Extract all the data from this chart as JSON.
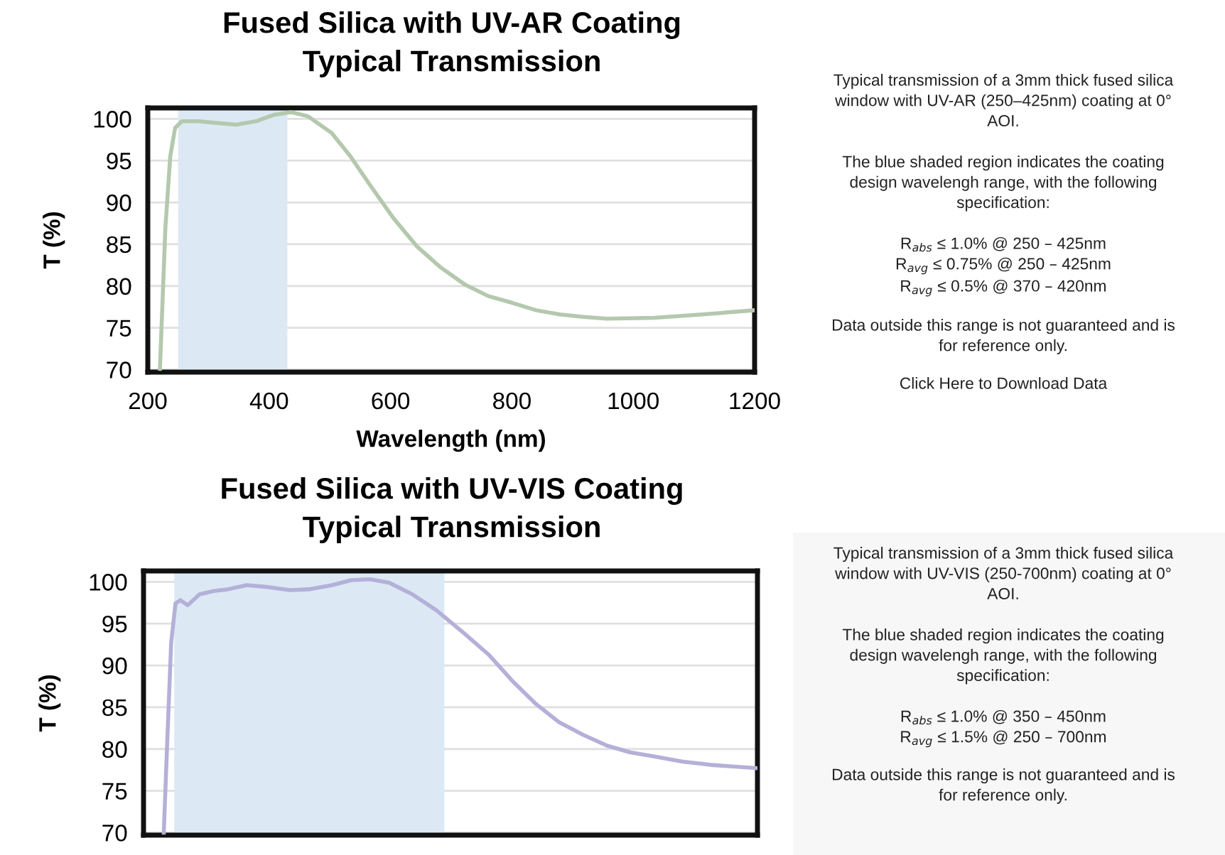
{
  "chart_data": [
    {
      "type": "line",
      "title": "Fused Silica with UV-AR Coating\nTypical Transmission",
      "xlabel": "Wavelength (nm)",
      "ylabel": "T (%)",
      "xlim": [
        200,
        1200
      ],
      "xticks": [
        200,
        400,
        600,
        800,
        1000,
        1200
      ],
      "ylim": [
        69.7,
        101.3
      ],
      "yticks": [
        70,
        75,
        80,
        85,
        90,
        95,
        100
      ],
      "grid": "y",
      "bands": [
        {
          "axis": "x",
          "from": 250,
          "to": 430,
          "color": "#dce9f5"
        }
      ],
      "series": [
        {
          "color": "#b4c8ae",
          "x": [
            220,
            229,
            237,
            245,
            256,
            284,
            315,
            346,
            378,
            409,
            436,
            464,
            503,
            534,
            566,
            605,
            644,
            683,
            722,
            761,
            800,
            840,
            879,
            918,
            957,
            1035,
            1114,
            1200
          ],
          "values": [
            70.1,
            87,
            95.5,
            98.9,
            99.7,
            99.7,
            99.5,
            99.3,
            99.7,
            100.5,
            100.8,
            100.3,
            98.3,
            95.5,
            92.1,
            88.1,
            84.7,
            82.2,
            80.2,
            78.8,
            78.0,
            77.1,
            76.6,
            76.3,
            76.1,
            76.2,
            76.6,
            77.1
          ]
        }
      ]
    },
    {
      "type": "other",
      "annotations": [
        "Typical transmission of a 3mm thick fused silica\nwindow with UV-AR (250–425nm) coating at 0°\nAOI.",
        "The blue shaded region indicates the coating\ndesign wavelengh range, with the following\nspecification:",
        "R$_{abs}$ ≤ 1.0% @ 250 – 425nm\nR$_{avg}$ ≤ 0.75% @ 250 – 425nm\nR$_{avg}$ ≤ 0.5% @ 370 – 420nm",
        "Data outside this range is not guaranteed and is\nfor reference only.",
        "Click Here to Download Data"
      ]
    },
    {
      "type": "line",
      "title": "Fused Silica with UV-VIS Coating\nTypical Transmission",
      "ylabel": "T (%)",
      "xlim": [
        200,
        1200
      ],
      "ylim": [
        69.7,
        101.3
      ],
      "yticks": [
        70,
        75,
        80,
        85,
        90,
        95,
        100
      ],
      "grid": "y",
      "tick_labels": "y",
      "bands": [
        {
          "axis": "x",
          "from": 250,
          "to": 690,
          "color": "#dce9f5"
        }
      ],
      "series": [
        {
          "color": "#b4b0d8",
          "x": [
            233,
            239,
            245,
            252,
            260,
            272,
            291,
            314,
            337,
            368,
            399,
            438,
            469,
            507,
            538,
            569,
            600,
            638,
            677,
            723,
            762,
            800,
            839,
            877,
            916,
            955,
            993,
            1032,
            1078,
            1124,
            1200
          ],
          "values": [
            70,
            81.6,
            92.7,
            97.4,
            97.8,
            97.2,
            98.5,
            98.9,
            99.1,
            99.6,
            99.4,
            99.0,
            99.1,
            99.6,
            100.2,
            100.3,
            99.9,
            98.5,
            96.6,
            93.8,
            91.3,
            88.2,
            85.4,
            83.2,
            81.7,
            80.4,
            79.6,
            79.1,
            78.5,
            78.1,
            77.7
          ]
        }
      ]
    },
    {
      "type": "other",
      "annotations": [
        "Typical transmission of a 3mm thick fused silica\nwindow with UV-VIS (250-700nm) coating at 0°\nAOI.",
        "The blue shaded region indicates the coating\ndesign wavelengh range, with the following\nspecification:",
        "R$_{abs}$ ≤ 1.0% @ 350 – 450nm\nR$_{avg}$ ≤ 1.5% @ 250 – 700nm",
        "Data outside this range is not guaranteed and is\nfor reference only."
      ]
    }
  ]
}
